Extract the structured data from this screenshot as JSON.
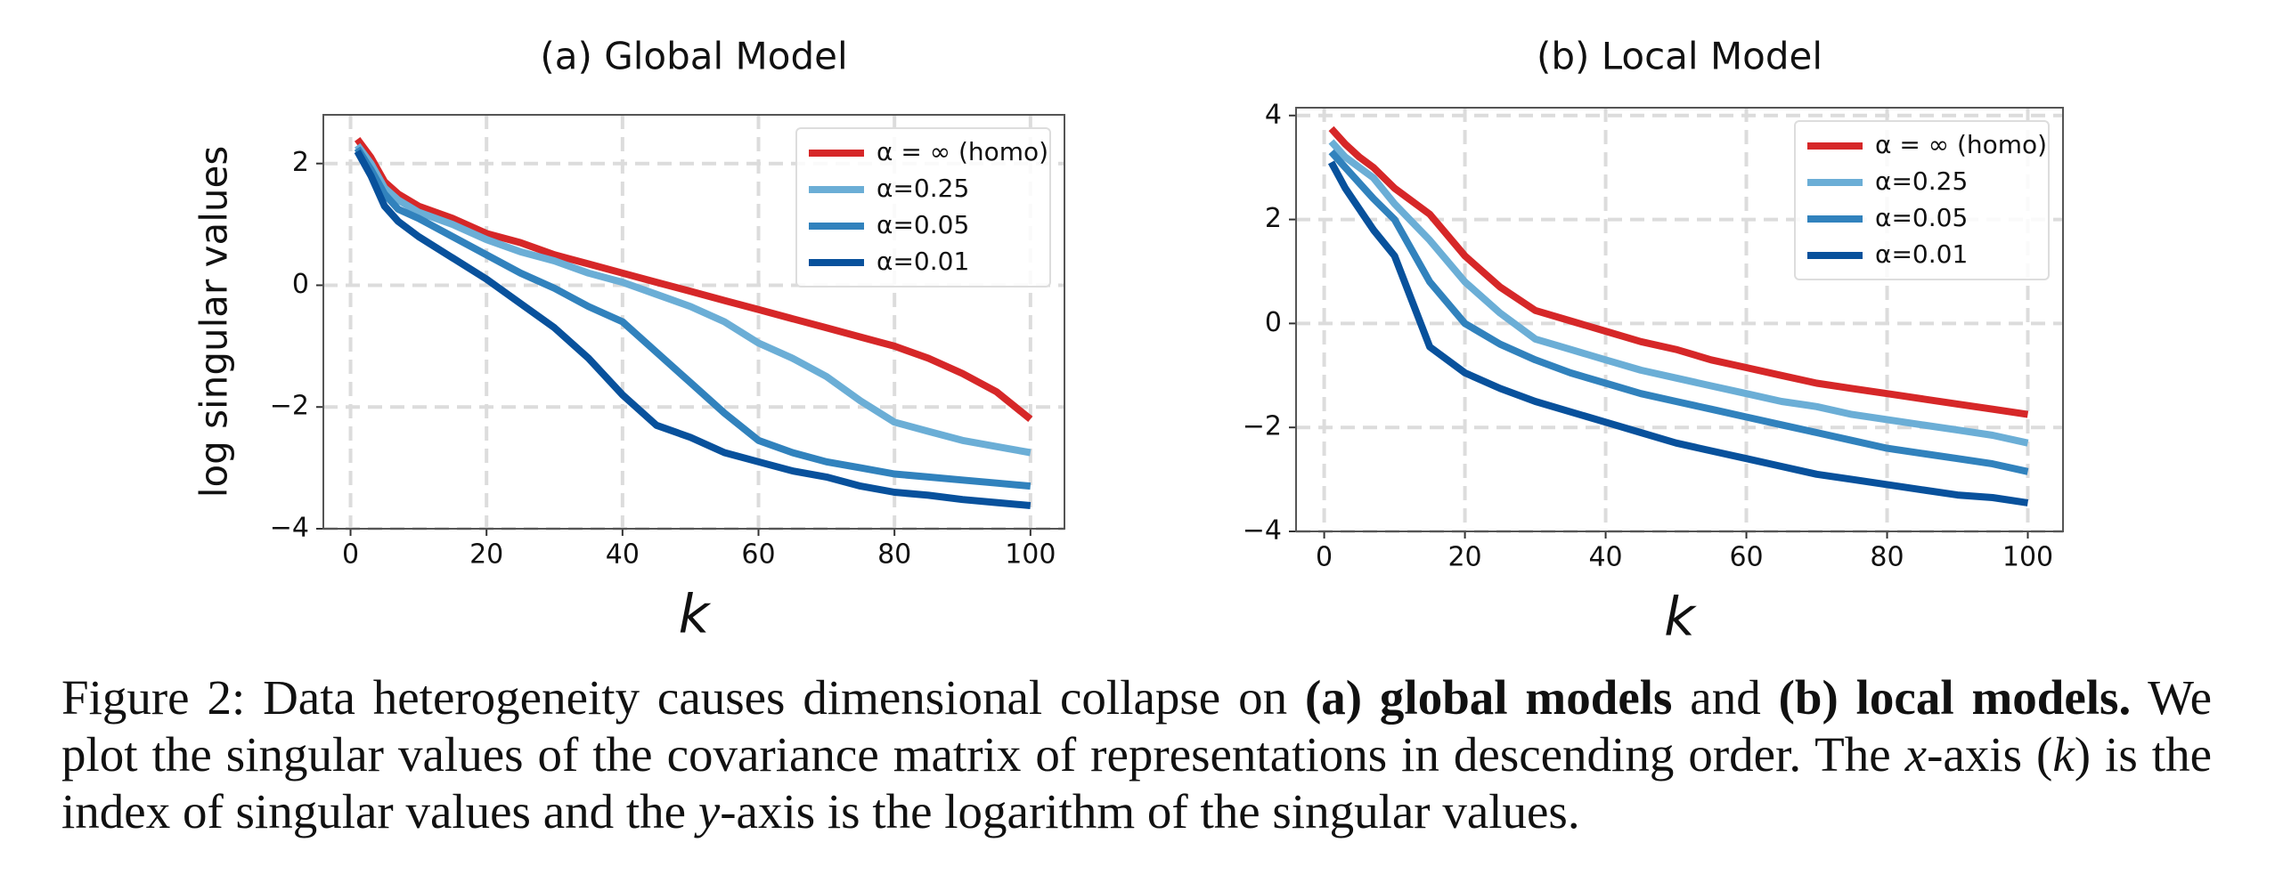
{
  "chart_data": [
    {
      "type": "line",
      "title": "(a) Global Model",
      "xlabel": "k",
      "ylabel": "log singular values",
      "x": [
        1,
        3,
        5,
        7,
        10,
        15,
        20,
        25,
        30,
        35,
        40,
        45,
        50,
        55,
        60,
        65,
        70,
        75,
        80,
        85,
        90,
        95,
        100
      ],
      "xlim": [
        -4,
        105
      ],
      "ylim": [
        -4,
        2.8
      ],
      "xticks": [
        0,
        20,
        40,
        60,
        80,
        100
      ],
      "yticks": [
        {
          "value": -4,
          "label": "−4"
        },
        {
          "value": -2,
          "label": "−2"
        },
        0,
        2
      ],
      "grid": true,
      "legend": "upper right",
      "series": [
        {
          "name": "α = ∞ (homo)",
          "color": "#d62728",
          "values": [
            2.4,
            2.1,
            1.7,
            1.5,
            1.3,
            1.1,
            0.85,
            0.7,
            0.5,
            0.35,
            0.2,
            0.05,
            -0.1,
            -0.25,
            -0.4,
            -0.55,
            -0.7,
            -0.85,
            -1.0,
            -1.2,
            -1.45,
            -1.75,
            -2.2
          ]
        },
        {
          "name": "α=0.25",
          "color": "#6baed6",
          "values": [
            2.3,
            2.0,
            1.6,
            1.4,
            1.2,
            1.0,
            0.75,
            0.55,
            0.4,
            0.2,
            0.05,
            -0.15,
            -0.35,
            -0.6,
            -0.95,
            -1.2,
            -1.5,
            -1.9,
            -2.25,
            -2.4,
            -2.55,
            -2.65,
            -2.75
          ]
        },
        {
          "name": "α=0.05",
          "color": "#3182bd",
          "values": [
            2.25,
            1.9,
            1.5,
            1.25,
            1.1,
            0.8,
            0.5,
            0.2,
            -0.05,
            -0.35,
            -0.6,
            -1.1,
            -1.6,
            -2.1,
            -2.55,
            -2.75,
            -2.9,
            -3.0,
            -3.1,
            -3.15,
            -3.2,
            -3.25,
            -3.3
          ]
        },
        {
          "name": "α=0.01",
          "color": "#08519c",
          "values": [
            2.2,
            1.8,
            1.3,
            1.05,
            0.8,
            0.45,
            0.1,
            -0.3,
            -0.7,
            -1.2,
            -1.8,
            -2.3,
            -2.5,
            -2.75,
            -2.9,
            -3.05,
            -3.15,
            -3.3,
            -3.4,
            -3.45,
            -3.52,
            -3.57,
            -3.62
          ]
        }
      ]
    },
    {
      "type": "line",
      "title": "(b) Local Model",
      "xlabel": "k",
      "x": [
        1,
        3,
        5,
        7,
        10,
        15,
        20,
        25,
        30,
        35,
        40,
        45,
        50,
        55,
        60,
        65,
        70,
        75,
        80,
        85,
        90,
        95,
        100
      ],
      "xlim": [
        -4,
        105
      ],
      "ylim": [
        -4,
        4.15
      ],
      "xticks": [
        0,
        20,
        40,
        60,
        80,
        100
      ],
      "yticks": [
        {
          "value": -4,
          "label": "−4"
        },
        {
          "value": -2,
          "label": "−2"
        },
        0,
        2,
        4
      ],
      "grid": true,
      "legend": "upper right",
      "series": [
        {
          "name": "α = ∞ (homo)",
          "color": "#d62728",
          "values": [
            3.75,
            3.45,
            3.2,
            3.0,
            2.6,
            2.1,
            1.3,
            0.7,
            0.25,
            0.05,
            -0.15,
            -0.35,
            -0.5,
            -0.7,
            -0.85,
            -1.0,
            -1.15,
            -1.25,
            -1.35,
            -1.45,
            -1.55,
            -1.65,
            -1.75
          ]
        },
        {
          "name": "α=0.25",
          "color": "#6baed6",
          "values": [
            3.5,
            3.2,
            3.0,
            2.8,
            2.3,
            1.6,
            0.8,
            0.2,
            -0.3,
            -0.5,
            -0.7,
            -0.9,
            -1.05,
            -1.2,
            -1.35,
            -1.5,
            -1.6,
            -1.75,
            -1.85,
            -1.95,
            -2.05,
            -2.15,
            -2.3
          ]
        },
        {
          "name": "α=0.05",
          "color": "#3182bd",
          "values": [
            3.3,
            3.0,
            2.7,
            2.4,
            2.0,
            0.8,
            0.0,
            -0.4,
            -0.7,
            -0.95,
            -1.15,
            -1.35,
            -1.5,
            -1.65,
            -1.8,
            -1.95,
            -2.1,
            -2.25,
            -2.4,
            -2.5,
            -2.6,
            -2.7,
            -2.85
          ]
        },
        {
          "name": "α=0.01",
          "color": "#08519c",
          "values": [
            3.1,
            2.6,
            2.2,
            1.8,
            1.3,
            -0.45,
            -0.95,
            -1.25,
            -1.5,
            -1.7,
            -1.9,
            -2.1,
            -2.3,
            -2.45,
            -2.6,
            -2.75,
            -2.9,
            -3.0,
            -3.1,
            -3.2,
            -3.3,
            -3.35,
            -3.45
          ]
        }
      ]
    }
  ],
  "caption": [
    "Figure 2: Data heterogeneity causes dimensional collapse on ",
    "(a) global models",
    " and ",
    "(b) local models.",
    " We plot the singular values of the covariance matrix of representations in descending order. The ",
    "x",
    "-axis (",
    "k",
    ") is the index of singular values and the ",
    "y",
    "-axis is the logarithm of the singular values."
  ]
}
